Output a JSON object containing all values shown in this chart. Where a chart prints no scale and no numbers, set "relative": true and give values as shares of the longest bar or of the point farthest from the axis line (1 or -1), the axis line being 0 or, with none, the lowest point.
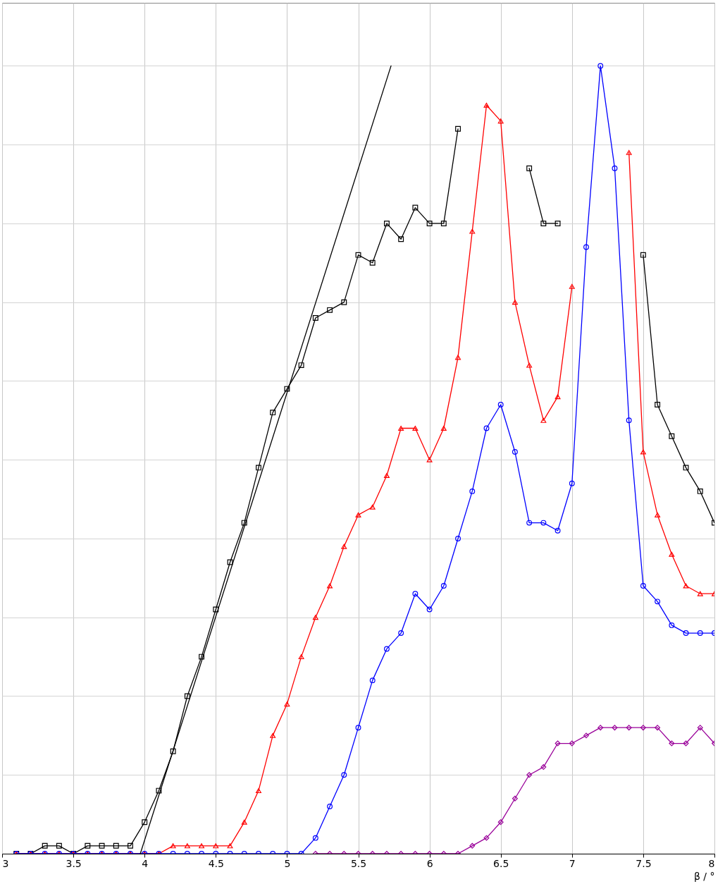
{
  "chart_data": {
    "type": "line",
    "relative": true,
    "xlabel": "β / °",
    "xlim": [
      3,
      8
    ],
    "xticks": [
      3,
      3.5,
      4,
      4.5,
      5,
      5.5,
      6,
      6.5,
      7,
      7.5,
      8
    ],
    "grid": true,
    "line_style": "solid",
    "x": [
      3.1,
      3.2,
      3.3,
      3.4,
      3.5,
      3.6,
      3.7,
      3.8,
      3.9,
      4.0,
      4.1,
      4.2,
      4.3,
      4.4,
      4.5,
      4.6,
      4.7,
      4.8,
      4.9,
      5.0,
      5.1,
      5.2,
      5.3,
      5.4,
      5.5,
      5.6,
      5.7,
      5.8,
      5.9,
      6.0,
      6.1,
      6.2,
      6.3,
      6.4,
      6.5,
      6.6,
      6.7,
      6.8,
      6.9,
      7.0,
      7.1,
      7.2,
      7.3,
      7.4,
      7.5,
      7.6,
      7.7,
      7.8,
      7.9,
      8.0
    ],
    "series": [
      {
        "color": "#000000",
        "marker": "square",
        "values": [
          0.0,
          0.0,
          0.01,
          0.01,
          0.0,
          0.01,
          0.01,
          0.01,
          0.01,
          0.04,
          0.08,
          0.13,
          0.2,
          0.25,
          0.31,
          0.37,
          0.42,
          0.49,
          0.56,
          0.59,
          0.62,
          0.68,
          0.69,
          0.7,
          0.76,
          0.75,
          0.8,
          0.78,
          0.82,
          0.8,
          0.8,
          0.92,
          null,
          null,
          null,
          null,
          0.87,
          0.8,
          0.8,
          null,
          null,
          null,
          null,
          null,
          0.76,
          0.57,
          0.53,
          0.49,
          0.46,
          0.42
        ]
      },
      {
        "color": "#ff0000",
        "marker": "triangle",
        "values": [
          0,
          0,
          0,
          0,
          0,
          0,
          0,
          0,
          0,
          0,
          0,
          0.01,
          0.01,
          0.01,
          0.01,
          0.01,
          0.04,
          0.08,
          0.15,
          0.19,
          0.25,
          0.3,
          0.34,
          0.39,
          0.43,
          0.44,
          0.48,
          0.54,
          0.54,
          0.5,
          0.54,
          0.63,
          0.79,
          0.95,
          0.93,
          0.7,
          0.62,
          0.55,
          0.58,
          0.72,
          null,
          null,
          null,
          0.89,
          0.51,
          0.43,
          0.38,
          0.34,
          0.33,
          0.33
        ]
      },
      {
        "color": "#0000ff",
        "marker": "circle",
        "values": [
          0,
          0,
          0,
          0,
          0,
          0,
          0,
          0,
          0,
          0,
          0,
          0,
          0,
          0,
          0,
          0,
          0,
          0,
          0,
          0,
          0,
          0.02,
          0.06,
          0.1,
          0.16,
          0.22,
          0.26,
          0.28,
          0.33,
          0.31,
          0.34,
          0.4,
          0.46,
          0.54,
          0.57,
          0.51,
          0.42,
          0.42,
          0.41,
          0.47,
          0.77,
          1,
          0.87,
          0.55,
          0.34,
          0.32,
          0.29,
          0.28,
          0.28,
          0.28
        ]
      },
      {
        "color": "#990099",
        "marker": "diamond",
        "x": [
          5.2,
          5.3,
          5.4,
          5.5,
          5.6,
          5.7,
          5.8,
          5.9,
          6.0,
          6.1,
          6.2,
          6.3,
          6.4,
          6.5,
          6.6,
          6.7,
          6.8,
          6.9,
          7.0,
          7.1,
          7.2,
          7.3,
          7.4,
          7.5,
          7.6,
          7.7,
          7.8,
          7.9,
          8.0
        ],
        "values": [
          0,
          0,
          0,
          0,
          0,
          0,
          0,
          0,
          0,
          0,
          0,
          0.01,
          0.02,
          0.04,
          0.07,
          0.1,
          0.11,
          0.14,
          0.14,
          0.15,
          0.16,
          0.16,
          0.16,
          0.16,
          0.16,
          0.14,
          0.14,
          0.16,
          0.14
        ]
      },
      {
        "color": "#000000",
        "marker": "none",
        "x": [
          3.97,
          5.73
        ],
        "values": [
          0,
          1
        ]
      }
    ]
  }
}
